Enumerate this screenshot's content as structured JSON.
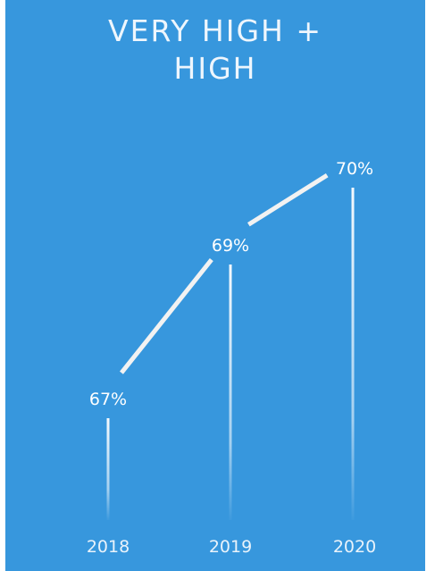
{
  "title": "VERY HIGH +\nHIGH",
  "colors": {
    "background": "#3797dd",
    "line": "#f2f2f2",
    "text": "#ffffff"
  },
  "chart_data": {
    "type": "line",
    "title": "VERY HIGH +\nHIGH",
    "xlabel": "",
    "ylabel": "",
    "categories": [
      "2018",
      "2019",
      "2020"
    ],
    "values": [
      67,
      69,
      70
    ],
    "data_labels": [
      "67%",
      "69%",
      "70%"
    ],
    "unit": "%",
    "grid": false,
    "legend": "none"
  }
}
